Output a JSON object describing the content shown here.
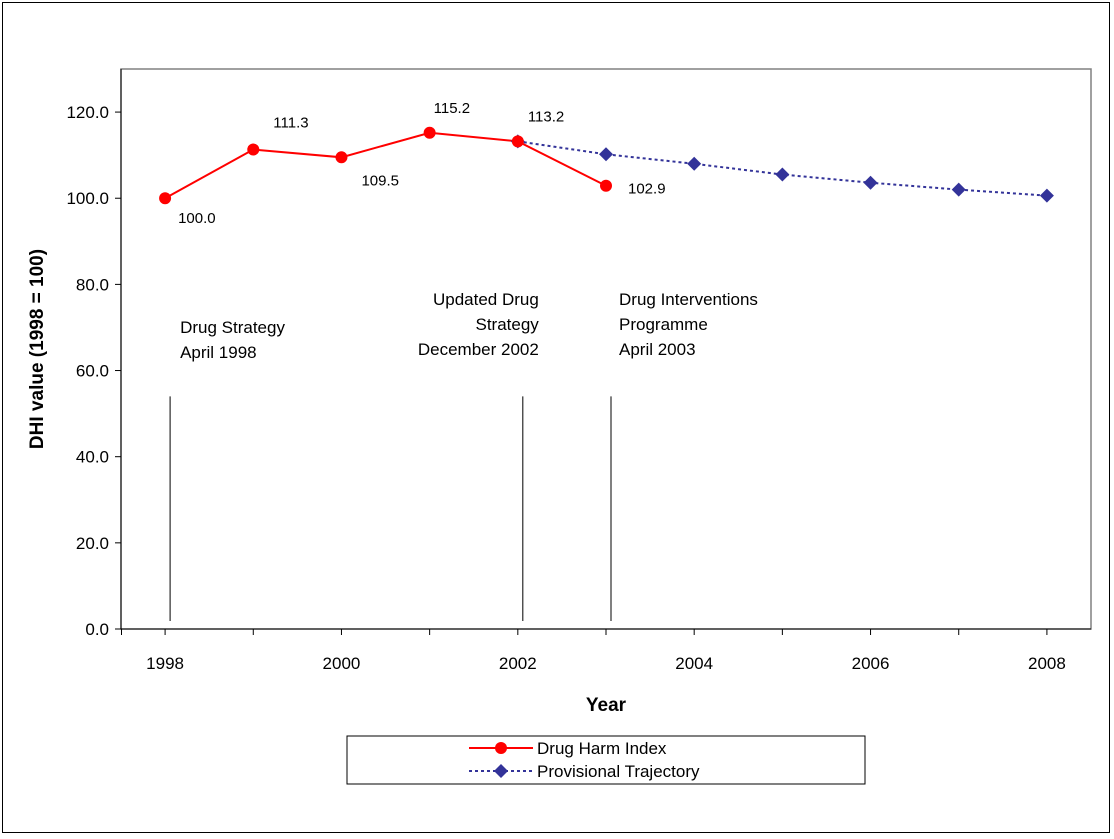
{
  "chart_data": {
    "type": "line",
    "xlabel": "Year",
    "ylabel": "DHI value (1998 = 100)",
    "xlim": [
      1997.5,
      2008.5
    ],
    "ylim": [
      0,
      130
    ],
    "y_ticks": [
      0,
      20,
      40,
      60,
      80,
      100,
      120
    ],
    "y_tick_labels": [
      "0.0",
      "20.0",
      "40.0",
      "60.0",
      "80.0",
      "100.0",
      "120.0"
    ],
    "x_ticks": [
      1998,
      2000,
      2002,
      2004,
      2006,
      2008
    ],
    "x_tick_labels": [
      "1998",
      "2000",
      "2002",
      "2004",
      "2006",
      "2008"
    ],
    "grid": false,
    "legend_position": "bottom",
    "series": [
      {
        "name": "Drug Harm Index",
        "color": "#ff0000",
        "line_style": "solid",
        "marker": "circle",
        "x": [
          1998,
          1999,
          2000,
          2001,
          2002,
          2003
        ],
        "y": [
          100.0,
          111.3,
          109.5,
          115.2,
          113.2,
          102.9
        ],
        "labels": [
          "100.0",
          "111.3",
          "109.5",
          "115.2",
          "113.2",
          "102.9"
        ]
      },
      {
        "name": "Provisional Trajectory",
        "color": "#333399",
        "line_style": "dotted",
        "marker": "diamond",
        "x": [
          2002,
          2003,
          2004,
          2005,
          2006,
          2007,
          2008
        ],
        "y": [
          113.2,
          110.2,
          108.0,
          105.5,
          103.6,
          102.0,
          100.6
        ]
      }
    ],
    "annotations": [
      {
        "x": 1998,
        "lines": [
          "Drug Strategy",
          "April 1998"
        ]
      },
      {
        "x": 2002,
        "lines": [
          "Updated Drug",
          "Strategy",
          "December 2002"
        ]
      },
      {
        "x": 2003,
        "lines": [
          "Drug Interventions",
          "Programme",
          " April 2003"
        ]
      }
    ]
  }
}
